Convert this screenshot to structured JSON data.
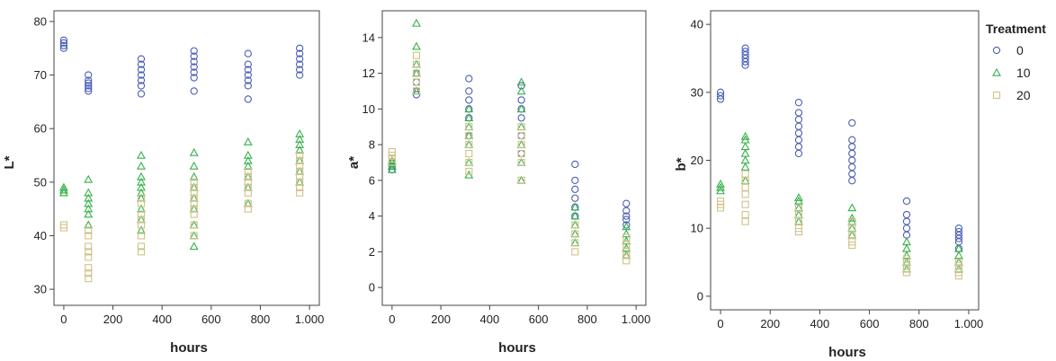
{
  "legend": {
    "title": "Treatment",
    "entries": [
      {
        "label": "0",
        "marker": "circle",
        "color": "#4a5fb5"
      },
      {
        "label": "10",
        "marker": "triangle",
        "color": "#35b04a"
      },
      {
        "label": "20",
        "marker": "square",
        "color": "#cfc28a"
      }
    ]
  },
  "chart_data": [
    {
      "type": "scatter",
      "xlabel": "hours",
      "ylabel": "L*",
      "xlim": [
        -40,
        1040
      ],
      "ylim": [
        27,
        82
      ],
      "xticks": [
        0,
        200,
        400,
        600,
        800,
        1000
      ],
      "xtick_labels": [
        "0",
        "200",
        "400",
        "600",
        "800",
        "1.000"
      ],
      "yticks": [
        30,
        40,
        50,
        60,
        70,
        80
      ],
      "x": [
        0,
        100,
        315,
        530,
        750,
        960
      ],
      "series": [
        {
          "name": "0",
          "marker": "circle",
          "color": "#4a5fb5",
          "values": [
            [
              75,
              75.5,
              76,
              76.5
            ],
            [
              67,
              67.5,
              68,
              68.5,
              69,
              70
            ],
            [
              66.5,
              68,
              69,
              70,
              71,
              72,
              73
            ],
            [
              67,
              69.5,
              70.5,
              71.5,
              72.5,
              73.5,
              74.5
            ],
            [
              65.5,
              68,
              69,
              70,
              71,
              72,
              74
            ],
            [
              70,
              71,
              72,
              73,
              74,
              75
            ]
          ]
        },
        {
          "name": "10",
          "marker": "triangle",
          "color": "#35b04a",
          "values": [
            [
              48,
              48.5,
              49
            ],
            [
              42,
              44,
              45,
              46,
              47,
              48,
              50.5
            ],
            [
              41,
              43,
              45,
              47,
              48,
              49,
              50,
              51,
              53,
              55
            ],
            [
              38,
              40,
              42,
              45,
              47,
              49,
              51,
              53,
              55.5
            ],
            [
              46,
              49,
              51,
              53,
              54,
              55,
              57.5
            ],
            [
              50,
              52,
              54,
              56,
              57,
              58,
              59
            ]
          ]
        },
        {
          "name": "20",
          "marker": "square",
          "color": "#cfc28a",
          "values": [
            [
              41.5,
              42
            ],
            [
              32,
              33,
              34,
              36,
              37,
              38,
              40,
              41
            ],
            [
              37,
              38,
              40,
              42,
              43,
              44,
              46,
              47
            ],
            [
              40,
              42,
              44,
              45,
              46,
              47,
              48,
              49,
              50
            ],
            [
              45,
              46,
              48,
              49,
              50,
              51,
              52
            ],
            [
              48,
              49,
              50,
              51,
              52,
              53,
              54,
              55
            ]
          ]
        }
      ]
    },
    {
      "type": "scatter",
      "xlabel": "hours",
      "ylabel": "a*",
      "xlim": [
        -40,
        1040
      ],
      "ylim": [
        -1,
        15.5
      ],
      "xticks": [
        0,
        200,
        400,
        600,
        800,
        1000
      ],
      "xtick_labels": [
        "0",
        "200",
        "400",
        "600",
        "800",
        "1.000"
      ],
      "yticks": [
        0,
        2,
        4,
        6,
        8,
        10,
        12,
        14
      ],
      "x": [
        0,
        100,
        315,
        530,
        750,
        960
      ],
      "series": [
        {
          "name": "0",
          "marker": "circle",
          "color": "#4a5fb5",
          "values": [
            [
              6.6,
              6.8,
              7.0
            ],
            [
              10.8,
              11.0,
              11.5,
              12.0
            ],
            [
              8.5,
              9.5,
              10.0,
              10.5,
              11.0,
              11.7
            ],
            [
              7.5,
              8.5,
              9.5,
              10.0,
              10.5,
              11.3
            ],
            [
              4.0,
              4.5,
              5.0,
              5.5,
              6.0,
              6.9
            ],
            [
              3.5,
              3.8,
              4.0,
              4.3,
              4.7
            ]
          ]
        },
        {
          "name": "10",
          "marker": "triangle",
          "color": "#35b04a",
          "values": [
            [
              6.6,
              6.8,
              7.0,
              7.1
            ],
            [
              11.0,
              12.0,
              12.5,
              13.5,
              14.8
            ],
            [
              6.3,
              7.0,
              8.0,
              8.5,
              9.0,
              9.5,
              10.0
            ],
            [
              6.0,
              7.0,
              8.0,
              9.0,
              10.0,
              11.0,
              11.5
            ],
            [
              2.5,
              3.0,
              3.5,
              4.0,
              4.5
            ],
            [
              1.8,
              2.2,
              2.6,
              3.0,
              3.4
            ]
          ]
        },
        {
          "name": "20",
          "marker": "square",
          "color": "#cfc28a",
          "values": [
            [
              7.0,
              7.2,
              7.4,
              7.6
            ],
            [
              11.0,
              11.5,
              12.0,
              12.5,
              13.0
            ],
            [
              6.5,
              7.0,
              7.5,
              8.0,
              8.5,
              9.0
            ],
            [
              6.0,
              7.0,
              7.5,
              8.0,
              8.5,
              9.0
            ],
            [
              2.0,
              2.5,
              3.0,
              3.5
            ],
            [
              1.5,
              1.8,
              2.0,
              2.4,
              2.8
            ]
          ]
        }
      ]
    },
    {
      "type": "scatter",
      "xlabel": "hours",
      "ylabel": "b*",
      "xlim": [
        -40,
        1040
      ],
      "ylim": [
        -2,
        42
      ],
      "xticks": [
        0,
        200,
        400,
        600,
        800,
        1000
      ],
      "xtick_labels": [
        "0",
        "200",
        "400",
        "600",
        "800",
        "1.000"
      ],
      "yticks": [
        0,
        10,
        20,
        30,
        40
      ],
      "x": [
        0,
        100,
        315,
        530,
        750,
        960
      ],
      "series": [
        {
          "name": "0",
          "marker": "circle",
          "color": "#4a5fb5",
          "values": [
            [
              29,
              29.5,
              30
            ],
            [
              34,
              34.5,
              35,
              35.5,
              36,
              36.5
            ],
            [
              21,
              22,
              23,
              24,
              25,
              26,
              27,
              28.5
            ],
            [
              17,
              18,
              19,
              20,
              21,
              22,
              23,
              25.5
            ],
            [
              9,
              10,
              11,
              12,
              14
            ],
            [
              7,
              8,
              8.5,
              9,
              9.5,
              10
            ]
          ]
        },
        {
          "name": "10",
          "marker": "triangle",
          "color": "#35b04a",
          "values": [
            [
              15.5,
              16,
              16.5
            ],
            [
              17,
              19,
              20,
              21,
              22,
              23,
              23.5
            ],
            [
              11,
              12,
              13,
              14,
              14.5
            ],
            [
              9,
              10,
              11,
              11.5,
              13
            ],
            [
              4,
              5,
              6,
              7,
              8
            ],
            [
              4,
              5,
              6,
              7
            ]
          ]
        },
        {
          "name": "20",
          "marker": "square",
          "color": "#cfc28a",
          "values": [
            [
              13,
              13.5,
              14
            ],
            [
              11,
              12,
              13.5,
              15,
              16,
              17,
              18
            ],
            [
              9.5,
              10,
              11,
              12,
              13
            ],
            [
              7.5,
              8,
              9,
              10,
              11
            ],
            [
              3.5,
              4,
              4.5,
              5,
              5.5
            ],
            [
              3,
              3.5,
              4,
              4.5,
              5
            ]
          ]
        }
      ]
    }
  ]
}
